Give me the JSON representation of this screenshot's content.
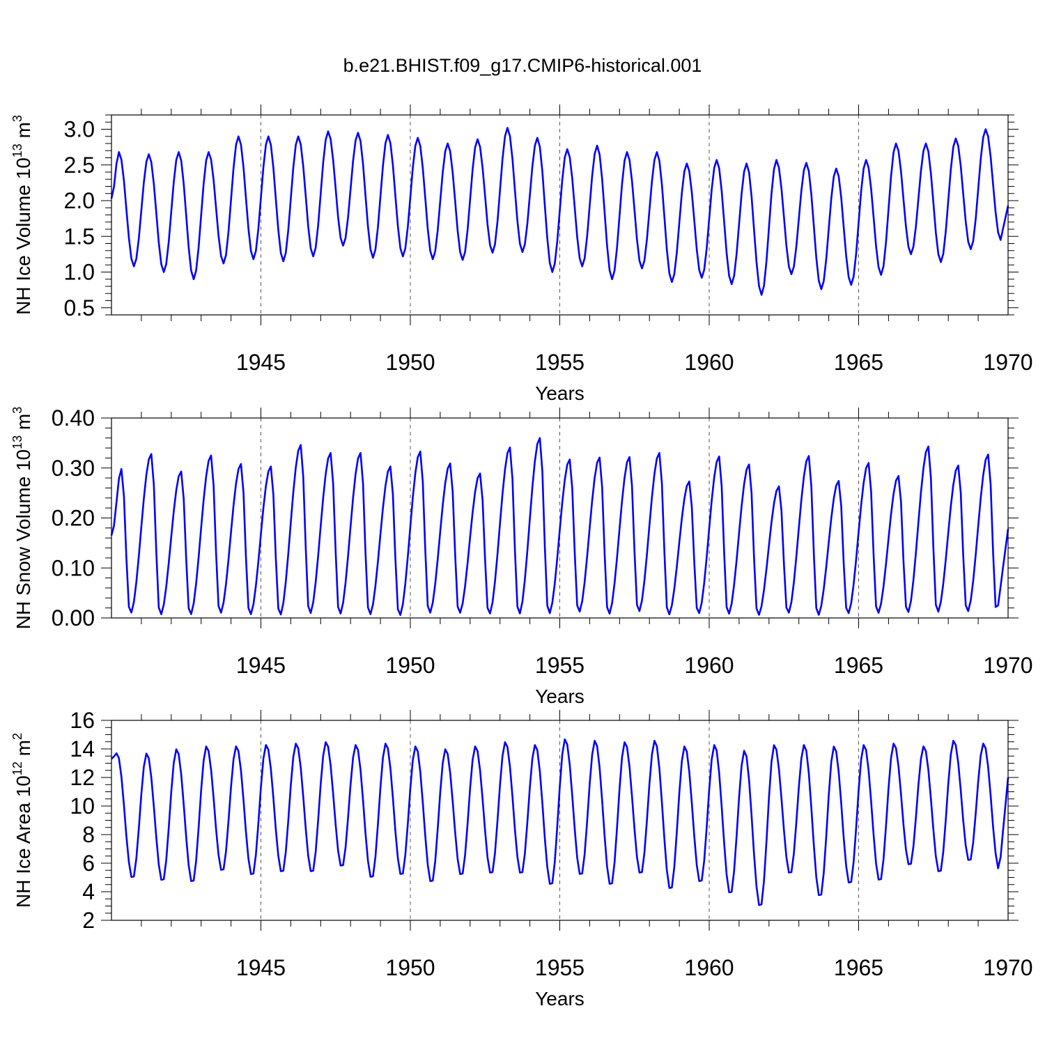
{
  "title": "b.e21.BHIST.f09_g17.CMIP6-historical.001",
  "colors": {
    "series": "#0000ff",
    "axis": "#000000",
    "background": "#ffffff"
  },
  "chart_data": [
    {
      "type": "line",
      "id": "ice-volume",
      "ylabel": "NH Ice Volume 10",
      "ylabel_sup": "13",
      "ylabel_unit": " m",
      "ylabel_unit_sup": "3",
      "xlabel": "Years",
      "xlim": [
        1940,
        1970
      ],
      "ylim": [
        0.4,
        3.2
      ],
      "x_ticks": [
        1945,
        1950,
        1955,
        1960,
        1965,
        1970
      ],
      "x_tick_labels": [
        "1945",
        "1950",
        "1955",
        "1960",
        "1965",
        "1970"
      ],
      "y_ticks": [
        0.5,
        1.0,
        1.5,
        2.0,
        2.5,
        3.0
      ],
      "y_tick_labels": [
        "0.5",
        "1.0",
        "1.5",
        "2.0",
        "2.5",
        "3.0"
      ],
      "y_minor_step": 0.1,
      "grid_x": [
        1945,
        1950,
        1955,
        1960,
        1965
      ],
      "seasonal": {
        "start_year": 1940,
        "end_year": 1969,
        "peak": [
          2.68,
          2.65,
          2.68,
          2.68,
          2.9,
          2.9,
          2.9,
          2.97,
          2.95,
          2.92,
          2.88,
          2.8,
          2.86,
          3.02,
          2.88,
          2.72,
          2.77,
          2.68,
          2.68,
          2.52,
          2.57,
          2.52,
          2.57,
          2.53,
          2.45,
          2.57,
          2.8,
          2.8,
          2.87,
          3.0
        ],
        "trough": [
          1.08,
          1.0,
          0.9,
          1.12,
          1.18,
          1.15,
          1.22,
          1.37,
          1.2,
          1.22,
          1.18,
          1.17,
          1.27,
          1.28,
          1.0,
          1.08,
          0.9,
          1.05,
          0.86,
          0.92,
          0.83,
          0.68,
          0.97,
          0.76,
          0.82,
          0.96,
          1.25,
          1.14,
          1.32,
          1.45
        ],
        "start_value": 2.03,
        "end_value": 1.93,
        "peak_month": 3,
        "trough_month": 9
      }
    },
    {
      "type": "line",
      "id": "snow-volume",
      "ylabel": "NH Snow Volume 10",
      "ylabel_sup": "13",
      "ylabel_unit": " m",
      "ylabel_unit_sup": "3",
      "xlabel": "Years",
      "xlim": [
        1940,
        1970
      ],
      "ylim": [
        0.0,
        0.4
      ],
      "x_ticks": [
        1945,
        1950,
        1955,
        1960,
        1965,
        1970
      ],
      "x_tick_labels": [
        "1945",
        "1950",
        "1955",
        "1960",
        "1965",
        "1970"
      ],
      "y_ticks": [
        0.0,
        0.1,
        0.2,
        0.3,
        0.4
      ],
      "y_tick_labels": [
        "0.00",
        "0.10",
        "0.20",
        "0.30",
        "0.40"
      ],
      "y_minor_step": 0.02,
      "grid_x": [
        1945,
        1950,
        1955,
        1960,
        1965
      ],
      "seasonal": {
        "start_year": 1940,
        "end_year": 1969,
        "peak": [
          0.298,
          0.328,
          0.293,
          0.325,
          0.308,
          0.303,
          0.346,
          0.33,
          0.33,
          0.303,
          0.333,
          0.309,
          0.289,
          0.341,
          0.36,
          0.317,
          0.321,
          0.322,
          0.33,
          0.273,
          0.323,
          0.307,
          0.263,
          0.324,
          0.274,
          0.31,
          0.284,
          0.343,
          0.305,
          0.327
        ],
        "trough": [
          0.008,
          0.005,
          0.005,
          0.008,
          0.005,
          0.004,
          0.007,
          0.006,
          0.005,
          0.003,
          0.008,
          0.008,
          0.006,
          0.006,
          0.007,
          0.01,
          0.006,
          0.011,
          0.005,
          0.007,
          0.006,
          0.004,
          0.008,
          0.004,
          0.007,
          0.008,
          0.009,
          0.01,
          0.011,
          0.006
        ],
        "start_value": 0.165,
        "end_value": 0.178,
        "peak_month": 4,
        "trough_month": 7.5
      }
    },
    {
      "type": "line",
      "id": "ice-area",
      "ylabel": "NH Ice Area 10",
      "ylabel_sup": "12",
      "ylabel_unit": " m",
      "ylabel_unit_sup": "2",
      "xlabel": "Years",
      "xlim": [
        1940,
        1970
      ],
      "ylim": [
        2,
        16
      ],
      "x_ticks": [
        1945,
        1950,
        1955,
        1960,
        1965,
        1970
      ],
      "x_tick_labels": [
        "1945",
        "1950",
        "1955",
        "1960",
        "1965",
        "1970"
      ],
      "y_ticks": [
        2,
        4,
        6,
        8,
        10,
        12,
        14,
        16
      ],
      "y_tick_labels": [
        "2",
        "4",
        "6",
        "8",
        "10",
        "12",
        "14",
        "16"
      ],
      "y_minor_step": 0.5,
      "grid_x": [
        1945,
        1950,
        1955,
        1960,
        1965
      ],
      "seasonal": {
        "start_year": 1940,
        "end_year": 1969,
        "peak": [
          13.7,
          13.7,
          14.0,
          14.2,
          14.2,
          14.3,
          14.4,
          14.5,
          14.3,
          14.4,
          14.2,
          14.0,
          14.2,
          14.5,
          14.3,
          14.7,
          14.6,
          14.5,
          14.6,
          14.2,
          14.3,
          13.9,
          14.3,
          14.3,
          14.2,
          14.3,
          14.4,
          14.2,
          14.6,
          14.4
        ],
        "trough": [
          4.9,
          4.7,
          4.6,
          5.4,
          5.1,
          5.3,
          5.3,
          5.7,
          4.9,
          5.1,
          4.6,
          5.1,
          5.2,
          5.2,
          4.4,
          5.1,
          4.4,
          5.2,
          4.1,
          4.6,
          3.8,
          2.9,
          5.2,
          3.6,
          4.5,
          4.7,
          5.8,
          5.3,
          6.1,
          5.5
        ],
        "start_value": 13.3,
        "end_value": 12.0,
        "peak_month": 2.2,
        "trough_month": 8.5
      }
    }
  ]
}
